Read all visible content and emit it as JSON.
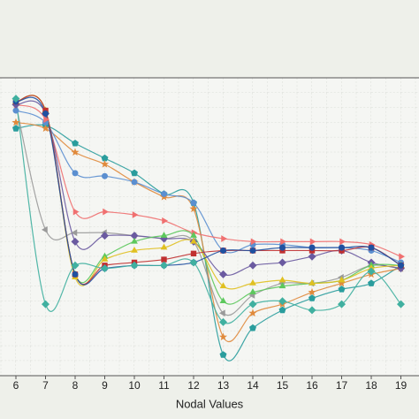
{
  "chart_data": {
    "type": "line",
    "x_label": "Nodal Values",
    "categories": [
      "6",
      "7",
      "8",
      "9",
      "10",
      "11",
      "12",
      "13",
      "14",
      "15",
      "16",
      "17",
      "18",
      "19"
    ],
    "ylim": [
      0,
      100
    ],
    "grid": true,
    "series": [
      {
        "color": "#2a9d9d",
        "marker": "pentagon",
        "values": [
          83,
          84,
          78,
          73,
          68,
          61,
          58,
          7,
          16,
          22,
          26,
          29,
          31,
          37
        ]
      },
      {
        "color": "#e08a3c",
        "marker": "star",
        "values": [
          85,
          83,
          75,
          71,
          65,
          60,
          56,
          13,
          21,
          24,
          28,
          31,
          34,
          36
        ]
      },
      {
        "color": "#5b8fd0",
        "marker": "circle",
        "values": [
          89,
          85,
          68,
          67,
          65,
          61,
          58,
          42,
          44,
          44,
          43,
          43,
          42,
          38
        ]
      },
      {
        "color": "#f07070",
        "marker": "triangle-right",
        "values": [
          91,
          86,
          55,
          55,
          54,
          52,
          48,
          46,
          45,
          45,
          45,
          45,
          44,
          40
        ]
      },
      {
        "color": "#9a9a9a",
        "marker": "triangle-left",
        "values": [
          91,
          49,
          48,
          48,
          47,
          46,
          45,
          21,
          27,
          31,
          31,
          33,
          37,
          36
        ]
      },
      {
        "color": "#6a5aa0",
        "marker": "diamond",
        "values": [
          91,
          88,
          45,
          47,
          47,
          46,
          45,
          34,
          37,
          38,
          40,
          42,
          38,
          36
        ]
      },
      {
        "color": "#5cc85c",
        "marker": "triangle-up",
        "values": [
          92,
          89,
          34,
          40,
          45,
          47,
          47,
          25,
          28,
          30,
          31,
          32,
          37,
          37
        ]
      },
      {
        "color": "#e0c020",
        "marker": "triangle-up",
        "values": [
          92,
          89,
          33,
          39,
          42,
          43,
          45,
          30,
          31,
          32,
          31,
          32,
          36,
          37
        ]
      },
      {
        "color": "#c03030",
        "marker": "square",
        "values": [
          92,
          89,
          34,
          37,
          38,
          39,
          41,
          42,
          42,
          42,
          42,
          42,
          43,
          37
        ]
      },
      {
        "color": "#2050a0",
        "marker": "circle",
        "values": [
          92,
          88,
          34,
          36,
          37,
          37,
          38,
          42,
          42,
          43,
          43,
          43,
          43,
          37
        ]
      },
      {
        "color": "#40b0a0",
        "marker": "diamond",
        "values": [
          93,
          24,
          37,
          36,
          37,
          37,
          38,
          18,
          24,
          25,
          22,
          24,
          35,
          24
        ]
      }
    ]
  }
}
